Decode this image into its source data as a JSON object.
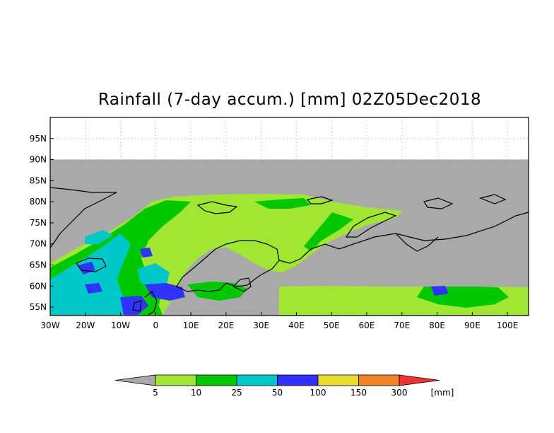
{
  "title": "Rainfall (7-day accum.) [mm] 02Z05Dec2018",
  "map": {
    "lon_range": [
      -30,
      106
    ],
    "lat_range": [
      53,
      100
    ],
    "data_lat_max": 90,
    "lon_ticks": [
      "30W",
      "20W",
      "10W",
      "0",
      "10E",
      "20E",
      "30E",
      "40E",
      "50E",
      "60E",
      "70E",
      "80E",
      "90E",
      "100E"
    ],
    "lon_tick_values": [
      -30,
      -20,
      -10,
      0,
      10,
      20,
      30,
      40,
      50,
      60,
      70,
      80,
      90,
      100
    ],
    "lat_ticks": [
      "55N",
      "60N",
      "65N",
      "70N",
      "75N",
      "80N",
      "85N",
      "90N",
      "95N"
    ],
    "lat_tick_values": [
      55,
      60,
      65,
      70,
      75,
      80,
      85,
      90,
      95
    ],
    "grid": true,
    "nodata_color": "#a9a9a9"
  },
  "colorbar": {
    "unit_label": "[mm]",
    "labels": [
      "5",
      "10",
      "25",
      "50",
      "100",
      "150",
      "300"
    ],
    "colors": [
      "#a0e632",
      "#00c800",
      "#00c8c8",
      "#3232ff",
      "#e6dc32",
      "#f08228",
      "#f03232"
    ],
    "below_color": "#a9a9a9"
  }
}
